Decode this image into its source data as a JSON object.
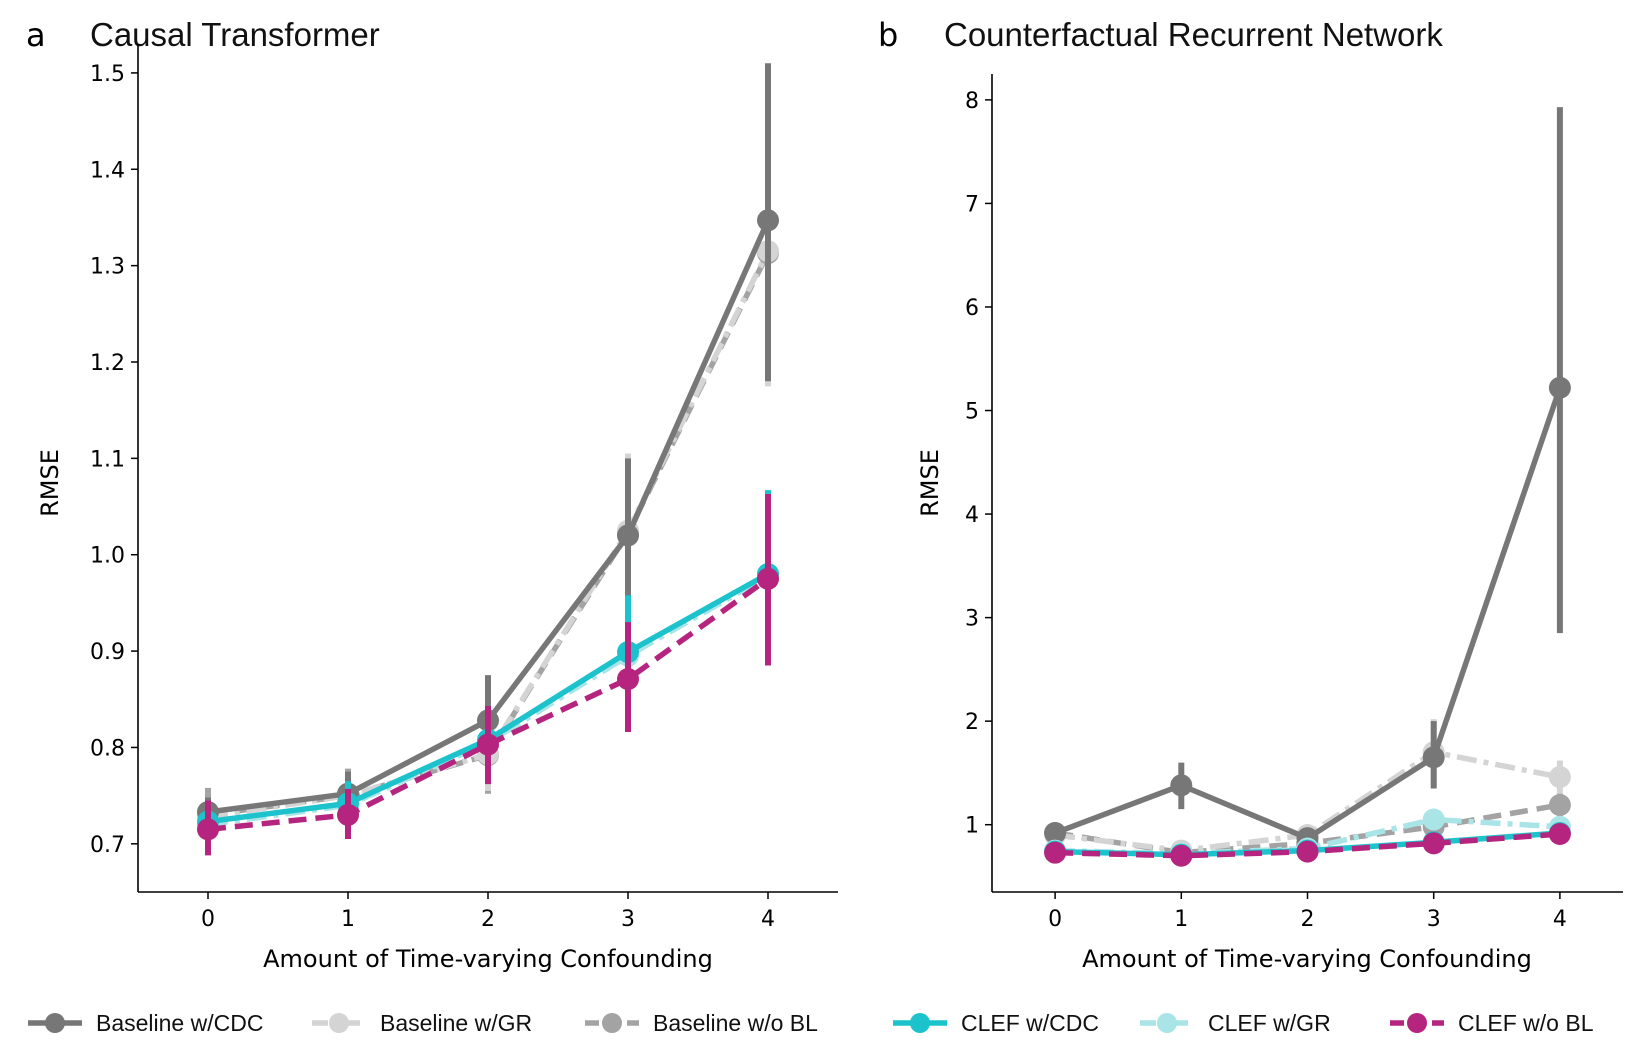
{
  "chart_data": [
    {
      "type": "line",
      "panel_letter": "a",
      "title": "Causal Transformer",
      "xlabel": "Amount of Time-varying Confounding",
      "ylabel": "RMSE",
      "x": [
        0,
        1,
        2,
        3,
        4
      ],
      "xticks": [
        0,
        1,
        2,
        3,
        4
      ],
      "yticks": [
        0.7,
        0.8,
        0.9,
        1.0,
        1.1,
        1.2,
        1.3,
        1.4,
        1.5
      ],
      "ytick_labels": [
        "0.7",
        "0.8",
        "0.9",
        "1.0",
        "1.1",
        "1.2",
        "1.3",
        "1.4",
        "1.5"
      ],
      "xlim": [
        -0.5,
        4.5
      ],
      "ylim": [
        0.65,
        1.53
      ],
      "series": [
        {
          "name": "Baseline w/CDC",
          "values": [
            0.733,
            0.752,
            0.828,
            1.02,
            1.347
          ],
          "err_low": [
            0.718,
            0.73,
            0.78,
            0.94,
            1.18
          ],
          "err_high": [
            0.748,
            0.775,
            0.875,
            1.1,
            1.51
          ]
        },
        {
          "name": "Baseline w/GR",
          "values": [
            0.728,
            0.75,
            0.793,
            1.025,
            1.315
          ],
          "err_low": [
            0.712,
            0.728,
            0.755,
            0.945,
            1.175
          ],
          "err_high": [
            0.745,
            0.772,
            0.83,
            1.105,
            1.465
          ]
        },
        {
          "name": "Baseline w/o BL",
          "values": [
            0.73,
            0.75,
            0.792,
            1.023,
            1.313
          ],
          "err_low": [
            0.705,
            0.725,
            0.752,
            0.94,
            1.175
          ],
          "err_high": [
            0.758,
            0.778,
            0.835,
            1.105,
            1.465
          ]
        },
        {
          "name": "CLEF w/CDC",
          "values": [
            0.723,
            0.742,
            0.808,
            0.899,
            0.98
          ],
          "err_low": [
            0.705,
            0.722,
            0.775,
            0.84,
            0.895
          ],
          "err_high": [
            0.745,
            0.765,
            0.84,
            0.958,
            1.067
          ]
        },
        {
          "name": "CLEF w/GR",
          "values": [
            0.72,
            0.74,
            0.805,
            0.895,
            0.978
          ],
          "err_low": [
            0.703,
            0.72,
            0.772,
            0.838,
            0.892
          ],
          "err_high": [
            0.742,
            0.762,
            0.838,
            0.955,
            1.065
          ]
        },
        {
          "name": "CLEF w/o BL",
          "values": [
            0.715,
            0.73,
            0.803,
            0.871,
            0.975
          ],
          "err_low": [
            0.688,
            0.705,
            0.762,
            0.816,
            0.885
          ],
          "err_high": [
            0.745,
            0.757,
            0.843,
            0.93,
            1.063
          ]
        }
      ]
    },
    {
      "type": "line",
      "panel_letter": "b",
      "title": "Counterfactual Recurrent Network",
      "xlabel": "Amount of Time-varying Confounding",
      "ylabel": "RMSE",
      "x": [
        0,
        1,
        2,
        3,
        4
      ],
      "xticks": [
        0,
        1,
        2,
        3,
        4
      ],
      "yticks": [
        1,
        2,
        3,
        4,
        5,
        6,
        7,
        8
      ],
      "ytick_labels": [
        "1",
        "2",
        "3",
        "4",
        "5",
        "6",
        "7",
        "8"
      ],
      "xlim": [
        -0.5,
        4.5
      ],
      "ylim": [
        0.35,
        8.25
      ],
      "series": [
        {
          "name": "Baseline w/CDC",
          "values": [
            0.92,
            1.38,
            0.87,
            1.65,
            5.22
          ],
          "err_low": [
            0.86,
            1.15,
            0.8,
            1.35,
            2.85
          ],
          "err_high": [
            0.98,
            1.6,
            0.95,
            2.0,
            7.93
          ]
        },
        {
          "name": "Baseline w/GR",
          "values": [
            0.9,
            0.75,
            0.9,
            1.7,
            1.46
          ],
          "err_low": [
            0.84,
            0.69,
            0.84,
            1.38,
            1.3
          ],
          "err_high": [
            0.96,
            0.82,
            0.96,
            2.02,
            1.62
          ]
        },
        {
          "name": "Baseline w/o BL",
          "values": [
            0.92,
            0.73,
            0.82,
            0.98,
            1.19
          ],
          "err_low": [
            0.86,
            0.67,
            0.76,
            0.9,
            1.08
          ],
          "err_high": [
            0.98,
            0.8,
            0.88,
            1.06,
            1.3
          ]
        },
        {
          "name": "CLEF w/CDC",
          "values": [
            0.74,
            0.71,
            0.75,
            0.83,
            0.92
          ],
          "err_low": [
            0.7,
            0.67,
            0.71,
            0.78,
            0.86
          ],
          "err_high": [
            0.78,
            0.75,
            0.79,
            0.88,
            0.98
          ]
        },
        {
          "name": "CLEF w/GR",
          "values": [
            0.75,
            0.72,
            0.77,
            1.05,
            0.98
          ],
          "err_low": [
            0.71,
            0.68,
            0.72,
            0.95,
            0.9
          ],
          "err_high": [
            0.79,
            0.76,
            0.82,
            1.15,
            1.06
          ]
        },
        {
          "name": "CLEF w/o BL",
          "values": [
            0.73,
            0.7,
            0.74,
            0.82,
            0.91
          ],
          "err_low": [
            0.69,
            0.66,
            0.7,
            0.77,
            0.85
          ],
          "err_high": [
            0.77,
            0.74,
            0.78,
            0.87,
            0.97
          ]
        }
      ]
    }
  ],
  "legend": {
    "placement": "bottom",
    "entries": [
      {
        "label": "Baseline w/CDC",
        "color": "#777777",
        "dash": "solid"
      },
      {
        "label": "Baseline w/GR",
        "color": "#d4d4d4",
        "dash": "dashdot"
      },
      {
        "label": "Baseline w/o BL",
        "color": "#a3a3a3",
        "dash": "dashed"
      },
      {
        "label": "CLEF w/CDC",
        "color": "#1cc3cc",
        "dash": "solid"
      },
      {
        "label": "CLEF w/GR",
        "color": "#a9e4e6",
        "dash": "dashdot"
      },
      {
        "label": "CLEF w/o BL",
        "color": "#b5257f",
        "dash": "dashed"
      }
    ]
  }
}
